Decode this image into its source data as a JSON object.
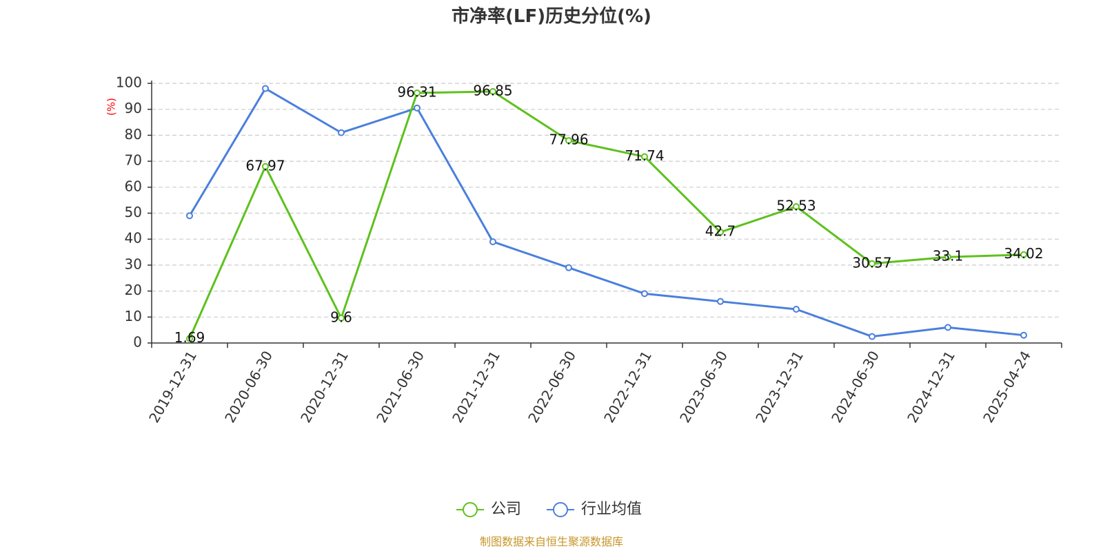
{
  "chart_data": {
    "type": "line",
    "title": "市净率(LF)历史分位(%)",
    "ylabel": "(%)",
    "ylim": [
      0,
      100
    ],
    "yticks": [
      0,
      10,
      20,
      30,
      40,
      50,
      60,
      70,
      80,
      90,
      100
    ],
    "grid": "horizontal dashed",
    "legend_position": "bottom",
    "categories": [
      "2019-12-31",
      "2020-06-30",
      "2020-12-31",
      "2021-06-30",
      "2021-12-31",
      "2022-06-30",
      "2022-12-31",
      "2023-06-30",
      "2023-12-31",
      "2024-06-30",
      "2024-12-31",
      "2025-04-24"
    ],
    "series": [
      {
        "name": "公司",
        "color": "#5dc11d",
        "values": [
          1.69,
          67.97,
          9.6,
          96.31,
          96.85,
          77.96,
          71.74,
          42.7,
          52.53,
          30.57,
          33.1,
          34.02
        ],
        "labels": [
          "1.69",
          "67.97",
          "9.6",
          "96.31",
          "96.85",
          "77.96",
          "71.74",
          "42.7",
          "52.53",
          "30.57",
          "33.1",
          "34.02"
        ]
      },
      {
        "name": "行业均值",
        "color": "#4a7fdc",
        "values": [
          49,
          98,
          81,
          90.5,
          39,
          29,
          19,
          16,
          13,
          2.5,
          6,
          3
        ]
      }
    ],
    "source": "制图数据来自恒生聚源数据库"
  }
}
